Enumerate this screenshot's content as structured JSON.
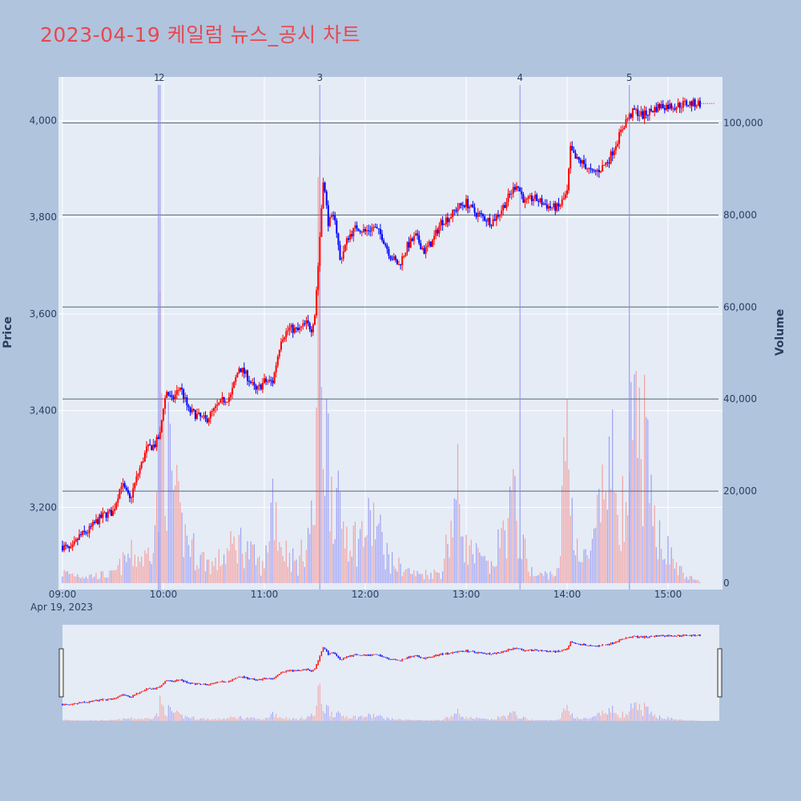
{
  "page": {
    "title": "2023-04-19 케일럼 뉴스_공시 차트",
    "background": "#b0c4de"
  },
  "colors": {
    "up": "#ff0000",
    "down": "#0000ff",
    "plot_bg": "#e5ecf6",
    "grid": "#ffffff",
    "hline": "#556677",
    "up_volume": "#f4a0a0",
    "down_volume": "#a0a0f4"
  },
  "chart_data": {
    "type": "candlestick",
    "title": "2023-04-19 케일럼 뉴스_공시 차트",
    "ylabel": "Price",
    "y2label": "Volume",
    "x_start": "09:00",
    "x_end": "15:30",
    "x_range": [
      "09:00",
      "15:30"
    ],
    "ylim": [
      3030,
      4090
    ],
    "y2lim": [
      0,
      110000
    ],
    "x_ticks": [
      "09:00",
      "10:00",
      "11:00",
      "12:00",
      "13:00",
      "14:00",
      "15:00"
    ],
    "x_date_label": "Apr 19, 2023",
    "y_ticks": [
      3200,
      3400,
      3600,
      3800,
      4000
    ],
    "y_tick_labels": [
      "3,200",
      "3,400",
      "3,600",
      "3,800",
      "4,000"
    ],
    "y2_ticks": [
      0,
      20000,
      40000,
      60000,
      80000,
      100000
    ],
    "y2_tick_labels": [
      "0",
      "20,000",
      "40,000",
      "60,000",
      "80,000",
      "100,000"
    ],
    "hlines_volume": [
      20000,
      40000,
      60000,
      80000,
      100000
    ],
    "grid": true,
    "legend": "none",
    "news_markers": [
      {
        "label": "1",
        "time": "09:57"
      },
      {
        "label": "2",
        "time": "09:58"
      },
      {
        "label": "3",
        "time": "11:33"
      },
      {
        "label": "4",
        "time": "13:32"
      },
      {
        "label": "5",
        "time": "14:37"
      }
    ],
    "price_path": [
      [
        "09:00",
        3120
      ],
      [
        "09:05",
        3110
      ],
      [
        "09:10",
        3140
      ],
      [
        "09:15",
        3150
      ],
      [
        "09:20",
        3170
      ],
      [
        "09:25",
        3185
      ],
      [
        "09:30",
        3190
      ],
      [
        "09:35",
        3250
      ],
      [
        "09:40",
        3215
      ],
      [
        "09:45",
        3270
      ],
      [
        "09:50",
        3320
      ],
      [
        "09:55",
        3330
      ],
      [
        "09:58",
        3350
      ],
      [
        "10:00",
        3410
      ],
      [
        "10:02",
        3440
      ],
      [
        "10:05",
        3420
      ],
      [
        "10:10",
        3450
      ],
      [
        "10:15",
        3400
      ],
      [
        "10:20",
        3390
      ],
      [
        "10:25",
        3380
      ],
      [
        "10:30",
        3400
      ],
      [
        "10:35",
        3420
      ],
      [
        "10:40",
        3430
      ],
      [
        "10:45",
        3490
      ],
      [
        "10:50",
        3470
      ],
      [
        "10:55",
        3440
      ],
      [
        "11:00",
        3460
      ],
      [
        "11:05",
        3460
      ],
      [
        "11:10",
        3550
      ],
      [
        "11:15",
        3570
      ],
      [
        "11:20",
        3565
      ],
      [
        "11:25",
        3580
      ],
      [
        "11:28",
        3570
      ],
      [
        "11:30",
        3600
      ],
      [
        "11:32",
        3700
      ],
      [
        "11:35",
        3880
      ],
      [
        "11:38",
        3790
      ],
      [
        "11:42",
        3800
      ],
      [
        "11:45",
        3710
      ],
      [
        "11:50",
        3760
      ],
      [
        "11:55",
        3780
      ],
      [
        "12:00",
        3770
      ],
      [
        "12:05",
        3780
      ],
      [
        "12:10",
        3760
      ],
      [
        "12:15",
        3720
      ],
      [
        "12:20",
        3700
      ],
      [
        "12:25",
        3740
      ],
      [
        "12:30",
        3760
      ],
      [
        "12:35",
        3730
      ],
      [
        "12:40",
        3750
      ],
      [
        "12:45",
        3790
      ],
      [
        "12:50",
        3800
      ],
      [
        "12:55",
        3820
      ],
      [
        "13:00",
        3830
      ],
      [
        "13:05",
        3810
      ],
      [
        "13:10",
        3800
      ],
      [
        "13:15",
        3790
      ],
      [
        "13:20",
        3810
      ],
      [
        "13:25",
        3840
      ],
      [
        "13:30",
        3870
      ],
      [
        "13:35",
        3830
      ],
      [
        "13:40",
        3840
      ],
      [
        "13:45",
        3830
      ],
      [
        "13:50",
        3820
      ],
      [
        "13:55",
        3820
      ],
      [
        "14:00",
        3850
      ],
      [
        "14:02",
        3940
      ],
      [
        "14:05",
        3920
      ],
      [
        "14:10",
        3910
      ],
      [
        "14:15",
        3890
      ],
      [
        "14:20",
        3900
      ],
      [
        "14:25",
        3920
      ],
      [
        "14:30",
        3960
      ],
      [
        "14:35",
        4000
      ],
      [
        "14:40",
        4020
      ],
      [
        "14:45",
        4010
      ],
      [
        "14:50",
        4020
      ],
      [
        "14:55",
        4030
      ],
      [
        "15:00",
        4030
      ],
      [
        "15:05",
        4030
      ],
      [
        "15:10",
        4035
      ],
      [
        "15:19",
        4035
      ]
    ],
    "volume_path": [
      [
        "09:00",
        3000
      ],
      [
        "09:15",
        2000
      ],
      [
        "09:30",
        2500
      ],
      [
        "09:40",
        8000
      ],
      [
        "09:50",
        7000
      ],
      [
        "09:57",
        22000
      ],
      [
        "09:58",
        56000
      ],
      [
        "10:00",
        42000
      ],
      [
        "10:05",
        30000
      ],
      [
        "10:10",
        16000
      ],
      [
        "10:20",
        8000
      ],
      [
        "10:30",
        5000
      ],
      [
        "10:45",
        12000
      ],
      [
        "11:00",
        4000
      ],
      [
        "11:05",
        26000
      ],
      [
        "11:10",
        11000
      ],
      [
        "11:20",
        5000
      ],
      [
        "11:30",
        20000
      ],
      [
        "11:33",
        105000
      ],
      [
        "11:35",
        48000
      ],
      [
        "11:40",
        30000
      ],
      [
        "11:45",
        18000
      ],
      [
        "11:55",
        12000
      ],
      [
        "12:05",
        18000
      ],
      [
        "12:15",
        6000
      ],
      [
        "12:30",
        2500
      ],
      [
        "12:45",
        3000
      ],
      [
        "12:55",
        26000
      ],
      [
        "13:00",
        10000
      ],
      [
        "13:15",
        4000
      ],
      [
        "13:28",
        23000
      ],
      [
        "13:32",
        12000
      ],
      [
        "13:40",
        2000
      ],
      [
        "13:55",
        3000
      ],
      [
        "14:00",
        48000
      ],
      [
        "14:03",
        20000
      ],
      [
        "14:08",
        6000
      ],
      [
        "14:15",
        9000
      ],
      [
        "14:25",
        34000
      ],
      [
        "14:30",
        28000
      ],
      [
        "14:35",
        16000
      ],
      [
        "14:37",
        36000
      ],
      [
        "14:40",
        40000
      ],
      [
        "14:46",
        40000
      ],
      [
        "14:50",
        20000
      ],
      [
        "14:55",
        15000
      ],
      [
        "15:00",
        9000
      ],
      [
        "15:05",
        5000
      ],
      [
        "15:10",
        2000
      ],
      [
        "15:19",
        500
      ]
    ],
    "range_slider": {
      "visible": true
    }
  }
}
